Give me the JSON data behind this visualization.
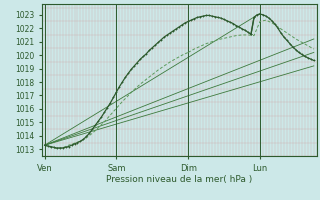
{
  "xlabel": "Pression niveau de la mer( hPa )",
  "bg_color": "#cce8e8",
  "plot_bg_color": "#cce8e8",
  "grid_minor_color": "#ddaaaa",
  "grid_major_color": "#bbbbbb",
  "dark_green": "#2d5a2d",
  "mid_green": "#3d7a3d",
  "light_green": "#5a9a5a",
  "text_color": "#2d5a2d",
  "ylim": [
    1012.5,
    1023.8
  ],
  "yticks": [
    1013,
    1014,
    1015,
    1016,
    1017,
    1018,
    1019,
    1020,
    1021,
    1022,
    1023
  ],
  "xtick_labels": [
    "Ven",
    "Sam",
    "Dim",
    "Lun"
  ],
  "xtick_positions": [
    0,
    24,
    48,
    72
  ],
  "xlim": [
    -1,
    91
  ],
  "vlines": [
    0,
    24,
    48,
    72
  ],
  "straight_lines": [
    {
      "x": [
        0,
        90
      ],
      "y": [
        1013.3,
        1019.2
      ]
    },
    {
      "x": [
        0,
        90
      ],
      "y": [
        1013.3,
        1020.2
      ]
    },
    {
      "x": [
        0,
        90
      ],
      "y": [
        1013.3,
        1021.2
      ]
    },
    {
      "x": [
        0,
        72
      ],
      "y": [
        1013.3,
        1023.1
      ]
    }
  ],
  "curve1_x": [
    0,
    1,
    2,
    3,
    4,
    5,
    6,
    7,
    8,
    9,
    10,
    11,
    12,
    13,
    14,
    15,
    16,
    17,
    18,
    19,
    20,
    21,
    22,
    23,
    24,
    25,
    26,
    27,
    28,
    29,
    30,
    31,
    32,
    33,
    34,
    35,
    36,
    37,
    38,
    39,
    40,
    41,
    42,
    43,
    44,
    45,
    46,
    47,
    48,
    49,
    50,
    51,
    52,
    53,
    54,
    55,
    56,
    57,
    58,
    59,
    60,
    61,
    62,
    63,
    64,
    65,
    66,
    67,
    68,
    69,
    70,
    71,
    72,
    73,
    74,
    75,
    76,
    77,
    78,
    79,
    80,
    81,
    82,
    83,
    84,
    85,
    86,
    87,
    88,
    89,
    90
  ],
  "curve1_y": [
    1013.3,
    1013.25,
    1013.2,
    1013.15,
    1013.1,
    1013.1,
    1013.1,
    1013.15,
    1013.2,
    1013.3,
    1013.4,
    1013.5,
    1013.6,
    1013.75,
    1013.95,
    1014.2,
    1014.5,
    1014.8,
    1015.1,
    1015.4,
    1015.75,
    1016.1,
    1016.45,
    1016.85,
    1017.25,
    1017.65,
    1018.0,
    1018.35,
    1018.65,
    1018.95,
    1019.2,
    1019.45,
    1019.7,
    1019.9,
    1020.1,
    1020.35,
    1020.55,
    1020.75,
    1020.95,
    1021.15,
    1021.35,
    1021.5,
    1021.65,
    1021.8,
    1021.95,
    1022.1,
    1022.25,
    1022.4,
    1022.5,
    1022.6,
    1022.7,
    1022.8,
    1022.85,
    1022.9,
    1022.95,
    1022.95,
    1022.9,
    1022.85,
    1022.8,
    1022.75,
    1022.65,
    1022.55,
    1022.45,
    1022.35,
    1022.2,
    1022.1,
    1021.95,
    1021.85,
    1021.7,
    1021.55,
    1022.8,
    1023.0,
    1023.05,
    1023.0,
    1022.9,
    1022.75,
    1022.55,
    1022.3,
    1022.0,
    1021.65,
    1021.35,
    1021.1,
    1020.85,
    1020.6,
    1020.4,
    1020.2,
    1020.05,
    1019.9,
    1019.8,
    1019.7,
    1019.6
  ],
  "curve2_x": [
    0,
    2,
    4,
    6,
    8,
    10,
    12,
    14,
    16,
    18,
    20,
    22,
    24,
    26,
    28,
    30,
    32,
    34,
    36,
    38,
    40,
    42,
    44,
    46,
    48,
    50,
    52,
    54,
    56,
    58,
    60,
    62,
    64,
    66,
    68,
    70,
    72,
    74,
    76,
    78,
    80,
    82,
    84,
    86,
    88,
    90
  ],
  "curve2_y": [
    1013.3,
    1013.15,
    1013.05,
    1013.1,
    1013.3,
    1013.45,
    1013.6,
    1013.85,
    1014.2,
    1014.6,
    1015.05,
    1015.55,
    1016.05,
    1016.55,
    1017.0,
    1017.45,
    1017.85,
    1018.2,
    1018.55,
    1018.9,
    1019.2,
    1019.5,
    1019.75,
    1020.0,
    1020.2,
    1020.45,
    1020.65,
    1020.85,
    1021.0,
    1021.15,
    1021.25,
    1021.35,
    1021.45,
    1021.5,
    1021.5,
    1021.45,
    1022.5,
    1022.6,
    1022.4,
    1022.1,
    1021.8,
    1021.5,
    1021.2,
    1020.95,
    1020.7,
    1020.45
  ]
}
